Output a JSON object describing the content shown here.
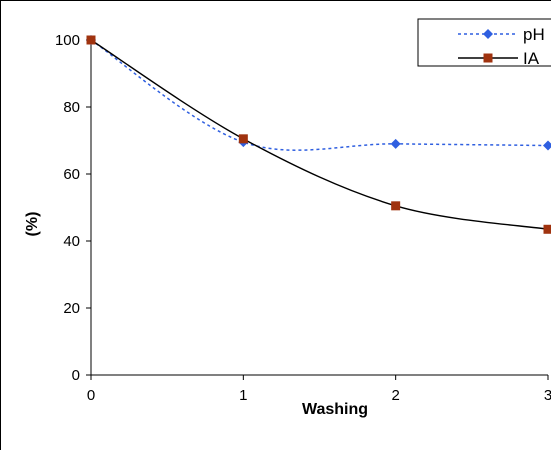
{
  "chart_data": {
    "type": "line",
    "x": [
      0,
      1,
      2,
      3
    ],
    "xlabel": "Washing",
    "ylabel": "(%)",
    "xlim": [
      0,
      3
    ],
    "ylim": [
      0,
      100
    ],
    "xticks": [
      "0",
      "1",
      "2",
      "3"
    ],
    "yticks": [
      "0",
      "20",
      "40",
      "60",
      "80",
      "100"
    ],
    "grid": false,
    "legend_position": "top-right",
    "series": [
      {
        "name": "pH",
        "values": [
          100,
          69.5,
          69,
          68.5
        ],
        "color": "#2f5fe0",
        "line_style": "dotted",
        "marker": "diamond",
        "smooth": true
      },
      {
        "name": "IA",
        "values": [
          100,
          70.5,
          50.5,
          43.5
        ],
        "color": "#000000",
        "marker_color": "#a0330f",
        "line_style": "solid",
        "marker": "square",
        "smooth": true
      }
    ]
  }
}
